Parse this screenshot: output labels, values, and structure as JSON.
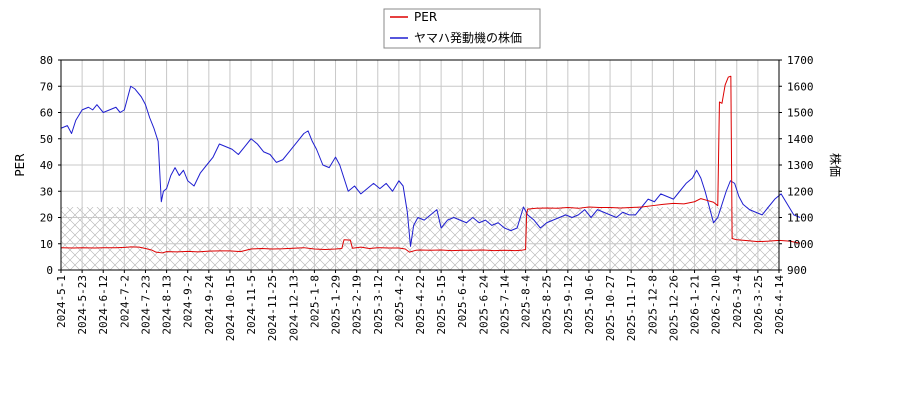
{
  "chart_data": {
    "type": "line",
    "legend": {
      "placement": "top-center",
      "entries": [
        "PER",
        "ヤマハ発動機の株価"
      ]
    },
    "colors": {
      "per": "#dd0000",
      "price": "#1f1fd0",
      "band_hatch": "#b0b0b0",
      "grid": "#c8c8c8"
    },
    "grid": true,
    "y_left": {
      "label": "PER",
      "range": [
        0,
        80
      ],
      "ticks": [
        "0",
        "10",
        "20",
        "30",
        "40",
        "50",
        "60",
        "70",
        "80"
      ]
    },
    "y_right": {
      "label": "株価",
      "range": [
        900,
        1700
      ],
      "ticks": [
        "900",
        "1000",
        "1100",
        "1200",
        "1300",
        "1400",
        "1500",
        "1600",
        "1700"
      ]
    },
    "x_ticks": [
      "2024-5-1",
      "2024-5-23",
      "2024-6-12",
      "2024-7-2",
      "2024-7-23",
      "2024-8-13",
      "2024-9-2",
      "2024-9-24",
      "2024-10-15",
      "2024-11-5",
      "2024-11-25",
      "2024-12-13",
      "2025-1-8",
      "2025-1-29",
      "2025-2-19",
      "2025-3-12",
      "2025-4-2",
      "2025-4-22",
      "2025-5-15",
      "2025-6-4",
      "2025-6-24",
      "2025-7-14",
      "2025-8-4",
      "2025-8-25",
      "2025-9-12",
      "2025-10-6",
      "2025-10-27",
      "2025-11-17",
      "2025-12-8",
      "2025-12-26",
      "2026-1-21",
      "2026-2-10",
      "2026-3-4",
      "2026-3-25",
      "2026-4-14"
    ],
    "per_band": [
      0,
      24
    ],
    "series": [
      {
        "name": "PER",
        "axis": "left",
        "points": [
          [
            0,
            8.5
          ],
          [
            0.6,
            8.4
          ],
          [
            1.0,
            8.5
          ],
          [
            1.6,
            8.4
          ],
          [
            2.0,
            8.5
          ],
          [
            2.6,
            8.5
          ],
          [
            3.0,
            8.6
          ],
          [
            3.3,
            8.8
          ],
          [
            3.7,
            8.7
          ],
          [
            4.0,
            8.2
          ],
          [
            4.3,
            7.6
          ],
          [
            4.5,
            6.8
          ],
          [
            4.8,
            6.5
          ],
          [
            5.0,
            7.0
          ],
          [
            5.5,
            6.9
          ],
          [
            6.0,
            7.1
          ],
          [
            6.5,
            6.9
          ],
          [
            7.0,
            7.2
          ],
          [
            7.5,
            7.3
          ],
          [
            8.0,
            7.3
          ],
          [
            8.5,
            7.0
          ],
          [
            9.0,
            8.0
          ],
          [
            9.5,
            8.2
          ],
          [
            10.0,
            8.0
          ],
          [
            10.5,
            8.1
          ],
          [
            11.0,
            8.3
          ],
          [
            11.5,
            8.5
          ],
          [
            12.0,
            8.0
          ],
          [
            12.5,
            7.8
          ],
          [
            13.0,
            8.0
          ],
          [
            13.3,
            8.2
          ],
          [
            13.4,
            11.5
          ],
          [
            13.7,
            11.4
          ],
          [
            13.8,
            8.3
          ],
          [
            14.2,
            8.7
          ],
          [
            14.6,
            8.2
          ],
          [
            15.0,
            8.5
          ],
          [
            15.5,
            8.4
          ],
          [
            16.0,
            8.4
          ],
          [
            16.3,
            8.0
          ],
          [
            16.5,
            6.8
          ],
          [
            16.8,
            7.5
          ],
          [
            17.0,
            7.6
          ],
          [
            17.5,
            7.5
          ],
          [
            18.0,
            7.6
          ],
          [
            18.5,
            7.4
          ],
          [
            19.0,
            7.5
          ],
          [
            19.5,
            7.5
          ],
          [
            20.0,
            7.6
          ],
          [
            20.5,
            7.4
          ],
          [
            21.0,
            7.5
          ],
          [
            21.5,
            7.4
          ],
          [
            21.8,
            7.5
          ],
          [
            22.0,
            7.8
          ],
          [
            22.05,
            21.5
          ],
          [
            22.1,
            23.2
          ],
          [
            22.5,
            23.5
          ],
          [
            23.0,
            23.6
          ],
          [
            23.5,
            23.5
          ],
          [
            24.0,
            23.8
          ],
          [
            24.5,
            23.5
          ],
          [
            25.0,
            24.0
          ],
          [
            25.5,
            23.8
          ],
          [
            26.0,
            23.8
          ],
          [
            26.5,
            23.6
          ],
          [
            27.0,
            23.8
          ],
          [
            27.5,
            24.0
          ],
          [
            28.0,
            24.5
          ],
          [
            28.5,
            25.0
          ],
          [
            29.0,
            25.4
          ],
          [
            29.5,
            25.2
          ],
          [
            30.0,
            26.0
          ],
          [
            30.3,
            27.2
          ],
          [
            30.6,
            26.5
          ],
          [
            30.9,
            25.8
          ],
          [
            31.1,
            24.5
          ],
          [
            31.18,
            64.0
          ],
          [
            31.3,
            63.5
          ],
          [
            31.45,
            70.5
          ],
          [
            31.6,
            73.5
          ],
          [
            31.72,
            73.8
          ],
          [
            31.78,
            12.0
          ],
          [
            32.0,
            11.5
          ],
          [
            32.5,
            11.2
          ],
          [
            33.0,
            10.8
          ],
          [
            33.5,
            11.0
          ],
          [
            34.0,
            11.3
          ],
          [
            34.5,
            11.0
          ],
          [
            35.0,
            10.2
          ]
        ]
      },
      {
        "name": "ヤマハ発動機の株価",
        "axis": "right",
        "points": [
          [
            0,
            1440
          ],
          [
            0.3,
            1450
          ],
          [
            0.5,
            1420
          ],
          [
            0.7,
            1470
          ],
          [
            1.0,
            1510
          ],
          [
            1.3,
            1520
          ],
          [
            1.5,
            1510
          ],
          [
            1.7,
            1530
          ],
          [
            2.0,
            1500
          ],
          [
            2.3,
            1510
          ],
          [
            2.6,
            1520
          ],
          [
            2.8,
            1500
          ],
          [
            3.0,
            1510
          ],
          [
            3.1,
            1540
          ],
          [
            3.3,
            1600
          ],
          [
            3.5,
            1590
          ],
          [
            3.8,
            1560
          ],
          [
            4.0,
            1530
          ],
          [
            4.2,
            1480
          ],
          [
            4.4,
            1440
          ],
          [
            4.6,
            1390
          ],
          [
            4.75,
            1160
          ],
          [
            4.85,
            1200
          ],
          [
            5.0,
            1210
          ],
          [
            5.2,
            1260
          ],
          [
            5.4,
            1290
          ],
          [
            5.6,
            1260
          ],
          [
            5.8,
            1280
          ],
          [
            6.0,
            1240
          ],
          [
            6.3,
            1220
          ],
          [
            6.6,
            1270
          ],
          [
            6.9,
            1300
          ],
          [
            7.2,
            1330
          ],
          [
            7.5,
            1380
          ],
          [
            7.8,
            1370
          ],
          [
            8.1,
            1360
          ],
          [
            8.4,
            1340
          ],
          [
            8.7,
            1370
          ],
          [
            9.0,
            1400
          ],
          [
            9.3,
            1380
          ],
          [
            9.6,
            1350
          ],
          [
            9.9,
            1340
          ],
          [
            10.2,
            1310
          ],
          [
            10.5,
            1320
          ],
          [
            10.8,
            1350
          ],
          [
            11.2,
            1390
          ],
          [
            11.5,
            1420
          ],
          [
            11.7,
            1430
          ],
          [
            11.9,
            1390
          ],
          [
            12.1,
            1360
          ],
          [
            12.4,
            1300
          ],
          [
            12.7,
            1290
          ],
          [
            13.0,
            1330
          ],
          [
            13.2,
            1300
          ],
          [
            13.4,
            1250
          ],
          [
            13.6,
            1200
          ],
          [
            13.9,
            1220
          ],
          [
            14.2,
            1190
          ],
          [
            14.5,
            1210
          ],
          [
            14.8,
            1230
          ],
          [
            15.1,
            1210
          ],
          [
            15.4,
            1230
          ],
          [
            15.7,
            1200
          ],
          [
            16.0,
            1240
          ],
          [
            16.2,
            1220
          ],
          [
            16.4,
            1120
          ],
          [
            16.55,
            990
          ],
          [
            16.7,
            1070
          ],
          [
            16.9,
            1100
          ],
          [
            17.2,
            1090
          ],
          [
            17.5,
            1110
          ],
          [
            17.8,
            1130
          ],
          [
            18.0,
            1060
          ],
          [
            18.3,
            1090
          ],
          [
            18.6,
            1100
          ],
          [
            18.9,
            1090
          ],
          [
            19.2,
            1080
          ],
          [
            19.5,
            1100
          ],
          [
            19.8,
            1080
          ],
          [
            20.1,
            1090
          ],
          [
            20.4,
            1070
          ],
          [
            20.7,
            1080
          ],
          [
            21.0,
            1060
          ],
          [
            21.3,
            1050
          ],
          [
            21.6,
            1060
          ],
          [
            21.9,
            1140
          ],
          [
            22.1,
            1110
          ],
          [
            22.4,
            1090
          ],
          [
            22.7,
            1060
          ],
          [
            23.0,
            1080
          ],
          [
            23.3,
            1090
          ],
          [
            23.6,
            1100
          ],
          [
            23.9,
            1110
          ],
          [
            24.2,
            1100
          ],
          [
            24.5,
            1110
          ],
          [
            24.8,
            1130
          ],
          [
            25.1,
            1100
          ],
          [
            25.4,
            1130
          ],
          [
            25.7,
            1120
          ],
          [
            26.0,
            1110
          ],
          [
            26.3,
            1100
          ],
          [
            26.6,
            1120
          ],
          [
            26.9,
            1110
          ],
          [
            27.2,
            1110
          ],
          [
            27.5,
            1140
          ],
          [
            27.8,
            1170
          ],
          [
            28.1,
            1160
          ],
          [
            28.4,
            1190
          ],
          [
            28.7,
            1180
          ],
          [
            29.0,
            1170
          ],
          [
            29.3,
            1200
          ],
          [
            29.6,
            1230
          ],
          [
            29.9,
            1250
          ],
          [
            30.1,
            1280
          ],
          [
            30.3,
            1250
          ],
          [
            30.5,
            1200
          ],
          [
            30.7,
            1140
          ],
          [
            30.9,
            1080
          ],
          [
            31.1,
            1100
          ],
          [
            31.3,
            1150
          ],
          [
            31.5,
            1200
          ],
          [
            31.7,
            1240
          ],
          [
            31.9,
            1230
          ],
          [
            32.1,
            1180
          ],
          [
            32.3,
            1150
          ],
          [
            32.6,
            1130
          ],
          [
            32.9,
            1120
          ],
          [
            33.2,
            1110
          ],
          [
            33.5,
            1140
          ],
          [
            33.8,
            1170
          ],
          [
            34.1,
            1190
          ],
          [
            34.4,
            1150
          ],
          [
            34.7,
            1110
          ],
          [
            35.0,
            1100
          ]
        ]
      }
    ]
  }
}
